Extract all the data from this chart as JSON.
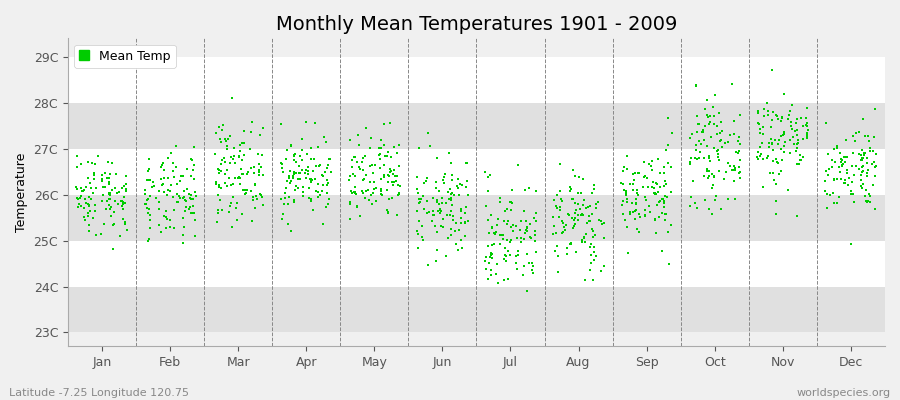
{
  "title": "Monthly Mean Temperatures 1901 - 2009",
  "ylabel": "Temperature",
  "xlabel_labels": [
    "Jan",
    "Feb",
    "Mar",
    "Apr",
    "May",
    "Jun",
    "Jul",
    "Aug",
    "Sep",
    "Oct",
    "Nov",
    "Dec"
  ],
  "ytick_labels": [
    "23C",
    "24C",
    "25C",
    "26C",
    "27C",
    "28C",
    "29C"
  ],
  "ytick_values": [
    23,
    24,
    25,
    26,
    27,
    28,
    29
  ],
  "ylim": [
    22.7,
    29.4
  ],
  "dot_color": "#00CC00",
  "background_color": "#f0f0f0",
  "band_color_light": "#ffffff",
  "band_color_dark": "#e0e0e0",
  "legend_label": "Mean Temp",
  "footer_left": "Latitude -7.25 Longitude 120.75",
  "footer_right": "worldspecies.org",
  "monthly_means": [
    26.0,
    25.9,
    26.5,
    26.4,
    26.3,
    25.7,
    25.1,
    25.4,
    26.0,
    26.9,
    27.2,
    26.6
  ],
  "monthly_stds": [
    0.45,
    0.48,
    0.52,
    0.45,
    0.5,
    0.55,
    0.6,
    0.55,
    0.52,
    0.55,
    0.55,
    0.48
  ],
  "n_years": 109,
  "seed": 42,
  "title_fontsize": 14,
  "axis_fontsize": 9,
  "tick_fontsize": 9,
  "footer_fontsize": 8,
  "dot_size": 3,
  "jitter_range": 0.38
}
